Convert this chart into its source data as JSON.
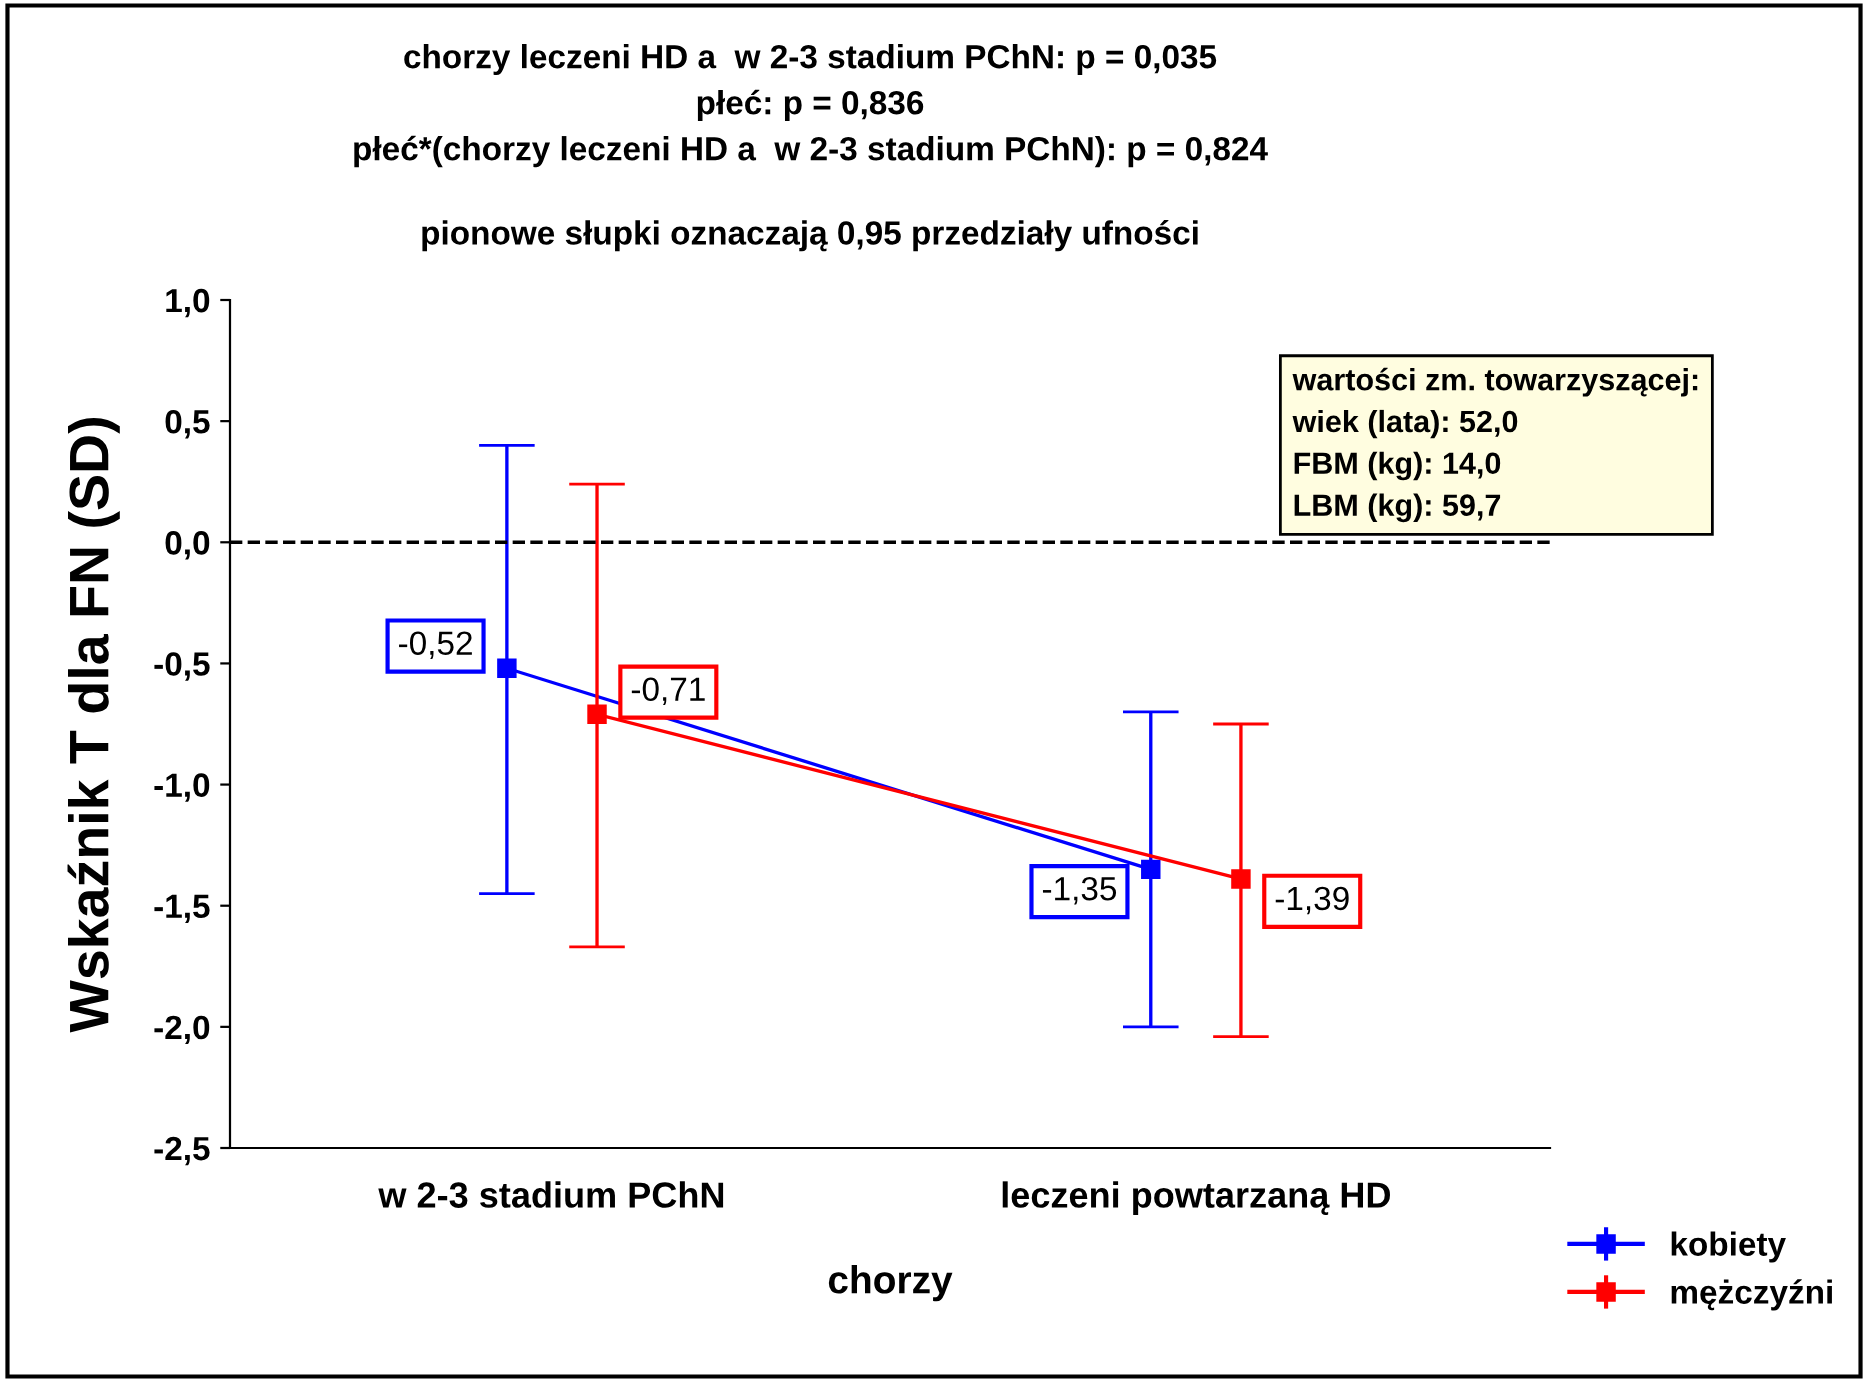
{
  "chart_data": {
    "type": "line",
    "title": "chorzy leczeni HD a  w 2-3 stadium PChN: p = 0,035\npłeć: p = 0,836\npłeć*(chorzy leczeni HD a  w 2-3 stadium PChN): p = 0,824",
    "subtitle": "pionowe słupki oznaczają 0,95 przedziały ufności",
    "xlabel": "chorzy",
    "ylabel": "Wskaźnik T dla FN (SD)",
    "categories": [
      "w 2-3 stadium PChN",
      "leczeni powtarzaną HD"
    ],
    "series": [
      {
        "name": "kobiety",
        "color": "#0000ff",
        "values": [
          -0.52,
          -1.35
        ],
        "errors": [
          [
            -1.45,
            0.4
          ],
          [
            -2.0,
            -0.7
          ]
        ],
        "value_labels": [
          "-0,52",
          "-1,35"
        ]
      },
      {
        "name": "mężczyźni",
        "color": "#ff0000",
        "values": [
          -0.71,
          -1.39
        ],
        "errors": [
          [
            -1.67,
            0.24
          ],
          [
            -2.04,
            -0.75
          ]
        ],
        "value_labels": [
          "-0,71",
          "-1,39"
        ]
      }
    ],
    "ylim": [
      -2.5,
      1.0
    ],
    "yticks": [
      {
        "value": -2.5,
        "label": "-2,5"
      },
      {
        "value": -2.0,
        "label": "-2,0"
      },
      {
        "value": -1.5,
        "label": "-1,5"
      },
      {
        "value": -1.0,
        "label": "-1,0"
      },
      {
        "value": -0.5,
        "label": "-0,5"
      },
      {
        "value": 0.0,
        "label": "0,0"
      },
      {
        "value": 0.5,
        "label": "0,5"
      },
      {
        "value": 1.0,
        "label": "1,0"
      }
    ],
    "ref_lines": [
      {
        "axis": "y",
        "value": 0.0,
        "color": "#000000",
        "line_style": "dashed"
      }
    ],
    "annotations": [
      "wartości zm. towarzyszącej:\nwiek (lata): 52,0\nFBM (kg): 14,0\nLBM (kg): 59,7"
    ],
    "marker": "square",
    "line_style": "solid",
    "grid": false,
    "legend": "bottom right"
  }
}
